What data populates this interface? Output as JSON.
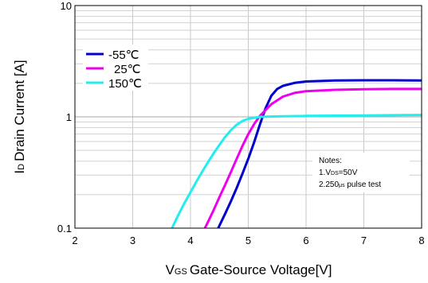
{
  "chart_data": {
    "type": "line",
    "xlabel_main": "Gate-Source Voltage[V]",
    "xlabel_prefix": "V",
    "xlabel_sub": "GS",
    "ylabel_prefix": "I",
    "ylabel_sub": "D",
    "ylabel_main": "Drain Current [A]",
    "xlim": [
      2,
      8
    ],
    "ylim": [
      0.1,
      10
    ],
    "yscale": "log",
    "grid": true,
    "legend_position": "top-left",
    "xticks": [
      "2",
      "3",
      "4",
      "5",
      "6",
      "7",
      "8"
    ],
    "yticks": [
      "0.1",
      "1",
      "10"
    ],
    "series": [
      {
        "name": "-55℃",
        "color": "#0000cc",
        "x": [
          4.48,
          4.6,
          4.7,
          4.8,
          4.9,
          5.0,
          5.1,
          5.2,
          5.3,
          5.4,
          5.5,
          5.6,
          5.8,
          6.0,
          6.5,
          7.0,
          7.5,
          8.0
        ],
        "y": [
          0.1,
          0.135,
          0.175,
          0.23,
          0.31,
          0.42,
          0.59,
          0.85,
          1.2,
          1.55,
          1.78,
          1.9,
          2.02,
          2.08,
          2.12,
          2.13,
          2.13,
          2.12
        ]
      },
      {
        "name": "25℃",
        "color": "#ee00ee",
        "x": [
          4.25,
          4.3,
          4.4,
          4.5,
          4.6,
          4.7,
          4.8,
          4.9,
          5.0,
          5.1,
          5.2,
          5.4,
          5.6,
          5.8,
          6.0,
          6.5,
          7.0,
          7.5,
          8.0
        ],
        "y": [
          0.1,
          0.113,
          0.145,
          0.19,
          0.245,
          0.32,
          0.42,
          0.55,
          0.7,
          0.86,
          1.02,
          1.3,
          1.52,
          1.64,
          1.7,
          1.75,
          1.77,
          1.78,
          1.78
        ]
      },
      {
        "name": "150℃",
        "color": "#22eeee",
        "x": [
          3.68,
          3.8,
          3.9,
          4.0,
          4.1,
          4.2,
          4.3,
          4.4,
          4.5,
          4.6,
          4.7,
          4.8,
          4.9,
          5.0,
          5.2,
          5.5,
          6.0,
          7.0,
          8.0
        ],
        "y": [
          0.1,
          0.135,
          0.17,
          0.21,
          0.26,
          0.32,
          0.39,
          0.47,
          0.56,
          0.66,
          0.76,
          0.85,
          0.92,
          0.96,
          1.0,
          1.01,
          1.02,
          1.03,
          1.04
        ]
      }
    ],
    "notes": [
      "Notes:",
      "1.V",
      "DS",
      "=50V",
      "2.250",
      "μs",
      " pulse test"
    ]
  }
}
